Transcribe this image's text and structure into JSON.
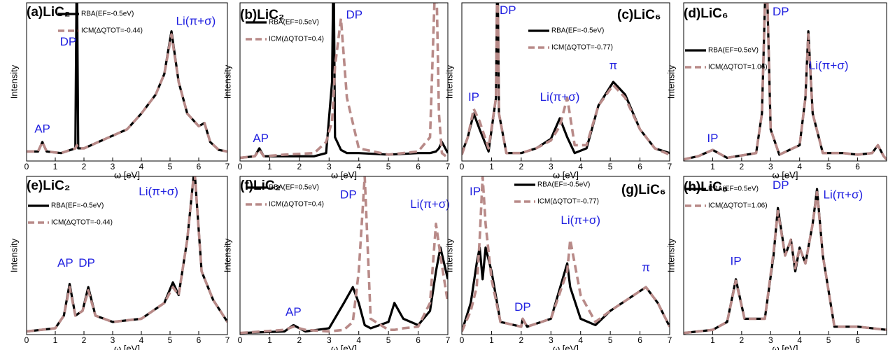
{
  "chart_data": [
    {
      "type": "line",
      "title": "(a)LiC₂",
      "x_label": "ω [eV]",
      "y_label": "Intensity",
      "x": [
        0,
        0.4,
        0.55,
        0.7,
        1.2,
        1.7,
        1.75,
        1.8,
        2.0,
        2.5,
        3,
        3.5,
        4,
        4.5,
        4.8,
        5.05,
        5.3,
        5.6,
        6.0,
        6.2,
        6.4,
        6.7,
        7
      ],
      "series": [
        {
          "name": "RBA(EF=-0.5eV)",
          "color": "#000000",
          "values": [
            0.06,
            0.06,
            0.12,
            0.06,
            0.05,
            0.08,
            1.3,
            0.08,
            0.08,
            0.12,
            0.16,
            0.2,
            0.3,
            0.42,
            0.55,
            0.82,
            0.5,
            0.3,
            0.22,
            0.24,
            0.12,
            0.07,
            0.06
          ]
        },
        {
          "name": "ICM(ΔQTOT=-0.44)",
          "color": "#b88a88",
          "values": [
            0.06,
            0.06,
            0.12,
            0.06,
            0.05,
            0.08,
            0.1,
            0.08,
            0.08,
            0.12,
            0.16,
            0.2,
            0.3,
            0.42,
            0.55,
            0.8,
            0.5,
            0.3,
            0.22,
            0.24,
            0.12,
            0.07,
            0.06
          ]
        }
      ],
      "annotations": [
        "AP",
        "DP",
        "Li(π+σ)"
      ],
      "xlim": [
        0,
        7
      ],
      "xticks": [
        0,
        1,
        2,
        3,
        4,
        5,
        6,
        7
      ],
      "ylim": [
        0,
        1
      ]
    },
    {
      "type": "line",
      "title": "(b)LiC₂",
      "x_label": "ω [eV]",
      "y_label": "Intensity",
      "x": [
        0,
        0.5,
        0.65,
        0.8,
        1.5,
        2.5,
        2.9,
        3.1,
        3.15,
        3.2,
        3.4,
        3.6,
        4,
        5,
        6,
        6.4,
        6.6,
        6.7,
        6.8,
        7
      ],
      "series": [
        {
          "name": "RBA(EF=0.5eV)",
          "color": "#000000",
          "values": [
            0.02,
            0.03,
            0.08,
            0.03,
            0.03,
            0.03,
            0.05,
            0.5,
            1.3,
            0.15,
            0.07,
            0.05,
            0.05,
            0.04,
            0.05,
            0.05,
            0.06,
            0.08,
            0.12,
            0.05
          ]
        },
        {
          "name": "ICM(ΔQTOT=0.4)",
          "color": "#b88a88",
          "values": [
            0.02,
            0.03,
            0.07,
            0.03,
            0.04,
            0.05,
            0.12,
            0.25,
            0.4,
            0.6,
            0.9,
            0.4,
            0.08,
            0.04,
            0.06,
            0.15,
            1.3,
            0.3,
            0.05,
            0.02
          ]
        }
      ],
      "annotations": [
        "AP",
        "DP"
      ],
      "xlim": [
        0,
        7
      ],
      "xticks": [
        0,
        1,
        2,
        3,
        4,
        5,
        6,
        7
      ],
      "ylim": [
        0,
        1
      ]
    },
    {
      "type": "line",
      "title": "(c)LiC₆",
      "x_label": "ω [eV]",
      "y_label": "Intensity",
      "x": [
        0,
        0.2,
        0.4,
        0.6,
        0.9,
        1.15,
        1.2,
        1.25,
        1.5,
        2,
        2.5,
        3,
        3.3,
        3.55,
        3.8,
        4.2,
        4.6,
        5.1,
        5.5,
        6,
        6.5,
        7
      ],
      "series": [
        {
          "name": "RBA(EF=-0.5eV)",
          "color": "#000000",
          "values": [
            0.05,
            0.15,
            0.3,
            0.2,
            0.06,
            0.4,
            1.3,
            0.3,
            0.05,
            0.05,
            0.08,
            0.14,
            0.27,
            0.15,
            0.05,
            0.08,
            0.35,
            0.5,
            0.42,
            0.2,
            0.08,
            0.05
          ]
        },
        {
          "name": "ICM(ΔQTOT=-0.77)",
          "color": "#b88a88",
          "values": [
            0.04,
            0.15,
            0.33,
            0.25,
            0.08,
            0.4,
            1.3,
            0.3,
            0.05,
            0.05,
            0.08,
            0.13,
            0.22,
            0.4,
            0.1,
            0.1,
            0.35,
            0.48,
            0.4,
            0.2,
            0.08,
            0.04
          ]
        }
      ],
      "annotations": [
        "IP",
        "DP",
        "Li(π+σ)",
        "π"
      ],
      "xlim": [
        0,
        7
      ],
      "xticks": [
        0,
        1,
        2,
        3,
        4,
        5,
        6,
        7
      ],
      "ylim": [
        0,
        1
      ]
    },
    {
      "type": "line",
      "title": "(d)LiC₆",
      "x_label": "ω [eV]",
      "y_label": "Intensity",
      "x": [
        0,
        0.5,
        1,
        1.5,
        2.5,
        2.7,
        2.85,
        3,
        3.3,
        4,
        4.2,
        4.3,
        4.45,
        4.8,
        5.5,
        6,
        6.5,
        6.7,
        6.9,
        7
      ],
      "series": [
        {
          "name": "RBA(EF=0.5eV)",
          "color": "#000000",
          "values": [
            0.01,
            0.03,
            0.07,
            0.02,
            0.05,
            0.3,
            1.3,
            0.2,
            0.04,
            0.1,
            0.4,
            0.82,
            0.3,
            0.05,
            0.05,
            0.04,
            0.05,
            0.1,
            0.03,
            0.01
          ]
        },
        {
          "name": "ICM(ΔQTOT=1.06)",
          "color": "#b88a88",
          "values": [
            0.01,
            0.03,
            0.07,
            0.02,
            0.05,
            0.3,
            1.3,
            0.2,
            0.04,
            0.1,
            0.4,
            0.8,
            0.3,
            0.05,
            0.05,
            0.04,
            0.05,
            0.1,
            0.03,
            0.01
          ]
        }
      ],
      "annotations": [
        "IP",
        "DP",
        "Li(π+σ)"
      ],
      "xlim": [
        0,
        7
      ],
      "xticks": [
        1,
        2,
        3,
        4,
        5,
        6
      ],
      "ylim": [
        0,
        1
      ]
    },
    {
      "type": "line",
      "title": "(e)LiC₂",
      "x_label": "ω [eV]",
      "y_label": "Intensity",
      "x": [
        0,
        1,
        1.3,
        1.5,
        1.7,
        1.95,
        2.15,
        2.4,
        3,
        4,
        4.8,
        5.1,
        5.3,
        5.6,
        5.85,
        6.1,
        6.5,
        7
      ],
      "series": [
        {
          "name": "RBA(EF=-0.5eV)",
          "color": "#000000",
          "values": [
            0.02,
            0.04,
            0.12,
            0.32,
            0.12,
            0.15,
            0.3,
            0.12,
            0.08,
            0.1,
            0.2,
            0.33,
            0.25,
            0.6,
            1.05,
            0.4,
            0.22,
            0.08
          ]
        },
        {
          "name": "ICM(ΔQTOT=-0.44)",
          "color": "#b88a88",
          "values": [
            0.02,
            0.04,
            0.12,
            0.3,
            0.12,
            0.15,
            0.28,
            0.12,
            0.08,
            0.1,
            0.2,
            0.3,
            0.25,
            0.6,
            1.05,
            0.4,
            0.22,
            0.08
          ]
        }
      ],
      "annotations": [
        "AP",
        "DP",
        "Li(π+σ)"
      ],
      "xlim": [
        0,
        7
      ],
      "xticks": [
        0,
        1,
        2,
        3,
        4,
        5,
        6,
        7
      ],
      "ylim": [
        0,
        1
      ]
    },
    {
      "type": "line",
      "title": "(f)LiC₂",
      "x_label": "ω [eV]",
      "y_label": "Intensity",
      "x": [
        0,
        1.5,
        1.8,
        2.2,
        3,
        3.5,
        3.8,
        4.0,
        4.2,
        4.4,
        5,
        5.2,
        5.5,
        6,
        6.4,
        6.6,
        6.75,
        7
      ],
      "series": [
        {
          "name": "RBA(EF=0.5eV)",
          "color": "#000000",
          "values": [
            0.01,
            0.02,
            0.06,
            0.02,
            0.04,
            0.2,
            0.3,
            0.2,
            0.06,
            0.04,
            0.08,
            0.2,
            0.1,
            0.06,
            0.15,
            0.4,
            0.55,
            0.35
          ]
        },
        {
          "name": "ICM(ΔQTOT=0.4)",
          "color": "#b88a88",
          "values": [
            0.01,
            0.03,
            0.05,
            0.03,
            0.02,
            0.03,
            0.08,
            0.4,
            1.0,
            0.1,
            0.03,
            0.03,
            0.04,
            0.05,
            0.2,
            0.7,
            0.5,
            0.2
          ]
        }
      ],
      "annotations": [
        "AP",
        "DP",
        "Li(π+σ)"
      ],
      "xlim": [
        0,
        7
      ],
      "xticks": [
        0,
        1,
        2,
        3,
        4,
        5,
        6,
        7
      ],
      "ylim": [
        0,
        1
      ]
    },
    {
      "type": "line",
      "title": "(g)LiC₆",
      "x_label": "ω [eV]",
      "y_label": "Intensity",
      "x": [
        0,
        0.3,
        0.5,
        0.6,
        0.7,
        0.8,
        1.0,
        1.3,
        2.0,
        2.05,
        2.2,
        3,
        3.55,
        3.65,
        4,
        4.5,
        5,
        6.2,
        6.6,
        7
      ],
      "series": [
        {
          "name": "RBA(EF=-0.5eV)",
          "color": "#000000",
          "values": [
            0.02,
            0.2,
            0.45,
            0.55,
            0.35,
            0.55,
            0.4,
            0.08,
            0.05,
            0.1,
            0.05,
            0.1,
            0.45,
            0.3,
            0.1,
            0.06,
            0.15,
            0.3,
            0.2,
            0.05
          ]
        },
        {
          "name": "ICM(ΔQTOT=-0.77)",
          "color": "#b88a88",
          "values": [
            0.02,
            0.15,
            0.3,
            0.6,
            1.0,
            0.7,
            0.35,
            0.08,
            0.05,
            0.1,
            0.05,
            0.1,
            0.4,
            0.6,
            0.25,
            0.08,
            0.15,
            0.3,
            0.2,
            0.05
          ]
        }
      ],
      "annotations": [
        "IP",
        "DP",
        "Li(π+σ)",
        "π"
      ],
      "xlim": [
        0,
        7
      ],
      "xticks": [
        0,
        1,
        2,
        3,
        4,
        5,
        6,
        7
      ],
      "ylim": [
        0,
        1
      ]
    },
    {
      "type": "line",
      "title": "(h)LiC₆",
      "x_label": "ω [eV]",
      "y_label": "Intensity",
      "x": [
        0,
        1,
        1.5,
        1.8,
        2.1,
        2.8,
        3.1,
        3.25,
        3.5,
        3.7,
        3.85,
        4.0,
        4.2,
        4.45,
        4.6,
        4.8,
        5.2,
        6,
        7
      ],
      "series": [
        {
          "name": "RBA(EF=0.5eV)",
          "color": "#000000",
          "values": [
            0.01,
            0.03,
            0.08,
            0.35,
            0.1,
            0.1,
            0.5,
            0.8,
            0.5,
            0.6,
            0.4,
            0.55,
            0.45,
            0.7,
            0.92,
            0.5,
            0.05,
            0.05,
            0.03
          ]
        },
        {
          "name": "ICM(ΔQTOT=1.06)",
          "color": "#b88a88",
          "values": [
            0.01,
            0.03,
            0.08,
            0.34,
            0.1,
            0.1,
            0.52,
            0.78,
            0.5,
            0.6,
            0.42,
            0.55,
            0.45,
            0.7,
            0.9,
            0.5,
            0.05,
            0.05,
            0.03
          ]
        }
      ],
      "annotations": [
        "IP",
        "DP",
        "Li(π+σ)"
      ],
      "xlim": [
        0,
        7
      ],
      "xticks": [
        1,
        2,
        3,
        4,
        5,
        6
      ],
      "ylim": [
        0,
        1
      ]
    }
  ]
}
